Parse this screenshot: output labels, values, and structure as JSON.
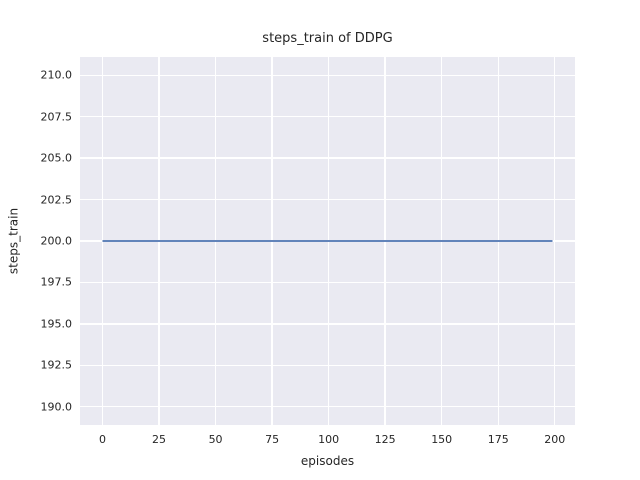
{
  "figure": {
    "background": "#ffffff",
    "plot_background": "#eaeaf2",
    "grid_color": "#ffffff",
    "text_color": "#262626"
  },
  "chart_data": {
    "type": "line",
    "title": "steps_train of DDPG",
    "xlabel": "episodes",
    "ylabel": "steps_train",
    "grid": true,
    "legend": "none",
    "xlim": [
      -9.95,
      208.95
    ],
    "ylim": [
      188.9,
      211.1
    ],
    "x_tick_values": [
      0,
      25,
      50,
      75,
      100,
      125,
      150,
      175,
      200
    ],
    "x_tick_labels": [
      "0",
      "25",
      "50",
      "75",
      "100",
      "125",
      "150",
      "175",
      "200"
    ],
    "y_tick_values": [
      190.0,
      192.5,
      195.0,
      197.5,
      200.0,
      202.5,
      205.0,
      207.5,
      210.0
    ],
    "y_tick_labels": [
      "190.0",
      "192.5",
      "195.0",
      "197.5",
      "200.0",
      "202.5",
      "205.0",
      "207.5",
      "210.0"
    ],
    "series": [
      {
        "name": "steps_train",
        "color": "#4c72b0",
        "x": [
          0,
          199
        ],
        "y": [
          200,
          200
        ],
        "description": "constant value 200 for every episode from 0 to 199"
      }
    ]
  }
}
